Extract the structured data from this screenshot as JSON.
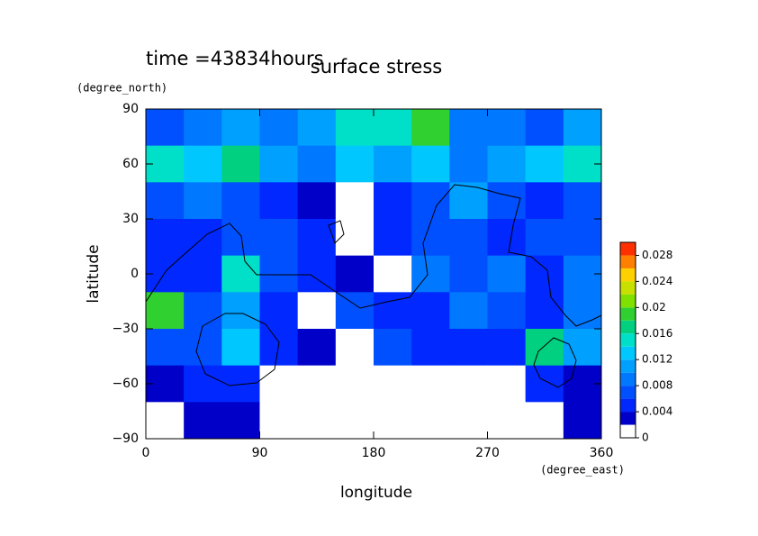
{
  "chart_data": {
    "type": "contour",
    "title": "surface stress",
    "subtitle": "time =43834hours",
    "x_label": "longitude",
    "x_unit": "(degree_east)",
    "y_label": "latitude",
    "y_unit": "(degree_north)",
    "xlim": [
      0,
      360
    ],
    "xticks": [
      0,
      90,
      180,
      270,
      360
    ],
    "ylim": [
      -90,
      90
    ],
    "yticks": [
      {
        "value": -90,
        "label": "−90"
      },
      {
        "value": -60,
        "label": "−60"
      },
      {
        "value": -30,
        "label": "−30"
      },
      0,
      30,
      60,
      90
    ],
    "z": [
      [
        0.006,
        0.008,
        0.01,
        0.008,
        0.01,
        0.014,
        0.014,
        0.018,
        0.008,
        0.008,
        0.006,
        0.01
      ],
      [
        0.014,
        0.012,
        0.016,
        0.01,
        0.008,
        0.012,
        0.01,
        0.012,
        0.008,
        0.01,
        0.012,
        0.014
      ],
      [
        0.006,
        0.008,
        0.006,
        0.004,
        0.002,
        0.001,
        0.004,
        0.006,
        0.01,
        0.006,
        0.004,
        0.006
      ],
      [
        0.004,
        0.004,
        0.006,
        0.006,
        0.004,
        0.001,
        0.004,
        0.006,
        0.006,
        0.004,
        0.006,
        0.006
      ],
      [
        0.004,
        0.004,
        0.014,
        0.006,
        0.004,
        0.002,
        0.001,
        0.008,
        0.006,
        0.008,
        0.004,
        0.008
      ],
      [
        0.018,
        0.006,
        0.01,
        0.004,
        0.001,
        0.006,
        0.004,
        0.004,
        0.008,
        0.006,
        0.004,
        0.008
      ],
      [
        0.006,
        0.006,
        0.012,
        0.004,
        0.002,
        0.001,
        0.006,
        0.004,
        0.004,
        0.004,
        0.016,
        0.01
      ],
      [
        0.002,
        0.004,
        0.004,
        0.001,
        0.001,
        0.001,
        0.001,
        0.001,
        0.001,
        0.001,
        0.004,
        0.002
      ],
      [
        0.001,
        0.003,
        0.002,
        0.001,
        0.001,
        0.001,
        0.001,
        0.001,
        0.001,
        0.001,
        0.001,
        0.003
      ]
    ],
    "colorbar": {
      "lim": [
        0,
        0.03
      ],
      "ticks": [
        0,
        0.004,
        0.008,
        0.012,
        0.016,
        0.02,
        0.024,
        0.028
      ],
      "levels": [
        0,
        0.002,
        0.004,
        0.006,
        0.008,
        0.01,
        0.012,
        0.014,
        0.016,
        0.018,
        0.02,
        0.022,
        0.024,
        0.026,
        0.028,
        0.03
      ],
      "colors": [
        "#ffffff",
        "#0000c8",
        "#0028ff",
        "#0050ff",
        "#0078ff",
        "#00a0ff",
        "#00c8ff",
        "#00e0c8",
        "#00d080",
        "#30d030",
        "#80e000",
        "#c8e000",
        "#ffd000",
        "#ff8000",
        "#ff3000"
      ]
    }
  }
}
